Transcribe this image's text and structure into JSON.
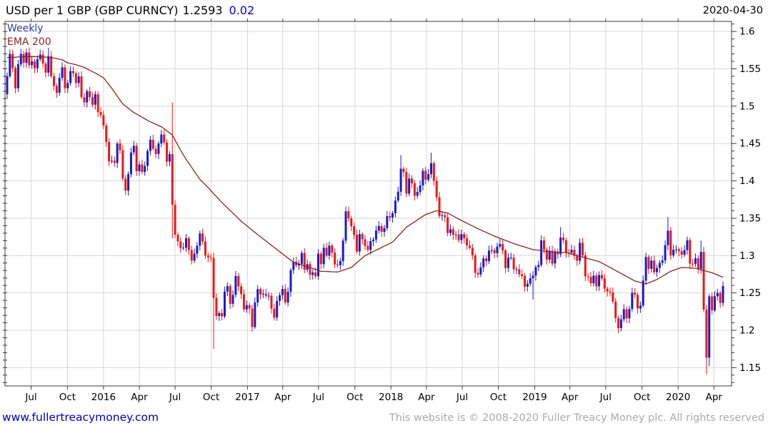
{
  "header": {
    "title": "USD per 1 GBP (GBP CURNCY)",
    "last_price": "1.2593",
    "change": "0.02",
    "date": "2020-04-30"
  },
  "chart_annotations": {
    "timeframe_label": "Weekly",
    "ema_label": "EMA 200"
  },
  "footer": {
    "link": "www.fullertreacymoney.com",
    "copyright": "This website is © 2008-2020 Fuller Treacy Money plc. All rights reserved"
  },
  "colors": {
    "up_candle": "#1a1acd",
    "down_candle": "#ee1616",
    "ema_line": "#8b2424",
    "weekly_label": "#3a3aa0",
    "ema_label": "#8b2424",
    "change_text": "#0000cd",
    "link_text": "#0000bb",
    "copyright_text": "#ababab",
    "grid": "#d8d8d8",
    "frame": "#3c3c3c",
    "label_text": "#000000"
  },
  "chart_data": {
    "type": "candlestick",
    "title": "USD per 1 GBP (GBP CURNCY)",
    "timeframe": "Weekly",
    "overlay": "EMA 200",
    "period_start": "2015-05-01",
    "period_end": "2020-04-30",
    "ylim": [
      1.1255,
      1.6135
    ],
    "y_ticks": [
      1.6,
      1.55,
      1.5,
      1.45,
      1.4,
      1.35,
      1.3,
      1.25,
      1.2,
      1.15
    ],
    "y_tick_labels": [
      "1.6",
      "1.55",
      "1.5",
      "1.45",
      "1.4",
      "1.35",
      "1.3",
      "1.25",
      "1.2",
      "1.15"
    ],
    "y_minor_step": 0.01,
    "x_tick_labels": [
      "Jul",
      "Oct",
      "2016",
      "Apr",
      "Jul",
      "Oct",
      "2017",
      "Apr",
      "Jul",
      "Oct",
      "2018",
      "Apr",
      "Jul",
      "Oct",
      "2019",
      "Apr",
      "Jul",
      "Oct",
      "2020",
      "Apr"
    ],
    "x_tick_weeks": [
      8.7,
      21.9,
      35.0,
      48.0,
      61.0,
      74.1,
      87.3,
      100.1,
      113.1,
      126.3,
      139.4,
      152.3,
      165.3,
      178.4,
      191.6,
      204.4,
      217.4,
      230.6,
      243.7,
      256.7
    ],
    "first_open": 1.516,
    "weekly_closes": [
      1.54,
      1.57,
      1.551,
      1.524,
      1.556,
      1.57,
      1.558,
      1.572,
      1.555,
      1.56,
      1.551,
      1.563,
      1.569,
      1.557,
      1.545,
      1.567,
      1.54,
      1.527,
      1.518,
      1.538,
      1.552,
      1.524,
      1.531,
      1.547,
      1.544,
      1.531,
      1.54,
      1.512,
      1.505,
      1.52,
      1.512,
      1.502,
      1.516,
      1.492,
      1.488,
      1.474,
      1.452,
      1.426,
      1.427,
      1.424,
      1.45,
      1.441,
      1.403,
      1.387,
      1.409,
      1.438,
      1.447,
      1.413,
      1.422,
      1.412,
      1.42,
      1.44,
      1.455,
      1.443,
      1.436,
      1.45,
      1.462,
      1.4515,
      1.4258,
      1.4358,
      1.368,
      1.328,
      1.319,
      1.31,
      1.3106,
      1.3232,
      1.3075,
      1.2932,
      1.3025,
      1.3132,
      1.3296,
      1.319,
      1.3,
      1.2977,
      1.297,
      1.2434,
      1.2191,
      1.223,
      1.2186,
      1.2517,
      1.259,
      1.2354,
      1.2474,
      1.2727,
      1.2588,
      1.2483,
      1.228,
      1.2336,
      1.2289,
      1.2044,
      1.2372,
      1.2551,
      1.248,
      1.2488,
      1.2462,
      1.2463,
      1.229,
      1.217,
      1.2392,
      1.247,
      1.2553,
      1.2372,
      1.2516,
      1.2806,
      1.2917,
      1.2869,
      1.2889,
      1.3035,
      1.281,
      1.2886,
      1.2741,
      1.2775,
      1.2723,
      1.3025,
      1.2885,
      1.3104,
      1.2999,
      1.3133,
      1.3039,
      1.2882,
      1.2871,
      1.2926,
      1.32,
      1.3593,
      1.3497,
      1.3392,
      1.3277,
      1.3054,
      1.3288,
      1.3218,
      1.3128,
      1.3077,
      1.3193,
      1.3215,
      1.3335,
      1.3395,
      1.3317,
      1.3368,
      1.3528,
      1.351,
      1.3566,
      1.3736,
      1.3855,
      1.4163,
      1.4118,
      1.383,
      1.4032,
      1.3967,
      1.3802,
      1.3852,
      1.3939,
      1.4135,
      1.4015,
      1.4091,
      1.4237,
      1.4001,
      1.3781,
      1.353,
      1.354,
      1.3513,
      1.3302,
      1.3353,
      1.3276,
      1.3282,
      1.3207,
      1.3288,
      1.3232,
      1.3135,
      1.3103,
      1.3003,
      1.2768,
      1.2748,
      1.2843,
      1.2962,
      1.2925,
      1.3068,
      1.3073,
      1.3032,
      1.3121,
      1.3154,
      1.3069,
      1.2833,
      1.2972,
      1.2973,
      1.2816,
      1.2818,
      1.2751,
      1.2726,
      1.2583,
      1.2623,
      1.2697,
      1.2733,
      1.2846,
      1.2873,
      1.3203,
      1.308,
      1.2945,
      1.3065,
      1.2894,
      1.3053,
      1.3017,
      1.3242,
      1.3206,
      1.3038,
      1.3037,
      1.3077,
      1.2996,
      1.2932,
      1.3171,
      1.3003,
      1.2723,
      1.2715,
      1.2629,
      1.2732,
      1.2589,
      1.274,
      1.2694,
      1.2557,
      1.2519,
      1.2507,
      1.2384,
      1.2162,
      1.2029,
      1.2147,
      1.2281,
      1.216,
      1.2285,
      1.2503,
      1.2477,
      1.2291,
      1.2332,
      1.2665,
      1.2982,
      1.2822,
      1.2933,
      1.2779,
      1.2834,
      1.2903,
      1.2935,
      1.3139,
      1.3333,
      1.3004,
      1.3079,
      1.3083,
      1.3059,
      1.3012,
      1.3073,
      1.3206,
      1.2891,
      1.2889,
      1.2964,
      1.2822,
      1.3048,
      1.2277,
      1.1634,
      1.2454,
      1.2267,
      1.2455,
      1.25,
      1.2367,
      1.2593
    ],
    "wick_overrides": {
      "1": {
        "high": 1.576
      },
      "7": {
        "high": 1.577
      },
      "15": {
        "high": 1.578
      },
      "60": {
        "high": 1.505,
        "low": 1.323
      },
      "75": {
        "low": 1.175
      },
      "89": {
        "low": 1.198
      },
      "123": {
        "high": 1.3657
      },
      "143": {
        "high": 1.4346
      },
      "154": {
        "high": 1.4377
      },
      "191": {
        "low": 1.2409
      },
      "201": {
        "high": 1.3381
      },
      "222": {
        "low": 1.1959
      },
      "240": {
        "high": 1.3514
      },
      "252": {
        "high": 1.32
      },
      "254": {
        "low": 1.1412
      },
      "255": {
        "low": 1.152
      }
    },
    "ema_anchor_points": [
      [
        0,
        1.565
      ],
      [
        5,
        1.566
      ],
      [
        9,
        1.5665
      ],
      [
        13,
        1.566
      ],
      [
        17,
        1.5645
      ],
      [
        20,
        1.562
      ],
      [
        22,
        1.558
      ],
      [
        25,
        1.5555
      ],
      [
        28,
        1.552
      ],
      [
        30,
        1.548
      ],
      [
        32,
        1.5445
      ],
      [
        35,
        1.538
      ],
      [
        38,
        1.524
      ],
      [
        42,
        1.503
      ],
      [
        46,
        1.4915
      ],
      [
        52,
        1.479
      ],
      [
        56,
        1.4725
      ],
      [
        60,
        1.4615
      ],
      [
        63,
        1.441
      ],
      [
        65,
        1.429
      ],
      [
        70,
        1.402
      ],
      [
        73,
        1.391
      ],
      [
        78,
        1.371
      ],
      [
        85,
        1.346
      ],
      [
        91,
        1.328
      ],
      [
        98,
        1.308
      ],
      [
        104,
        1.291
      ],
      [
        110,
        1.284
      ],
      [
        114,
        1.279
      ],
      [
        120,
        1.278
      ],
      [
        125,
        1.284
      ],
      [
        130,
        1.3
      ],
      [
        135,
        1.309
      ],
      [
        140,
        1.318
      ],
      [
        145,
        1.338
      ],
      [
        152,
        1.355
      ],
      [
        156,
        1.36
      ],
      [
        160,
        1.357
      ],
      [
        165,
        1.347
      ],
      [
        171,
        1.336
      ],
      [
        177,
        1.326
      ],
      [
        184,
        1.316
      ],
      [
        191,
        1.308
      ],
      [
        197,
        1.305
      ],
      [
        203,
        1.304
      ],
      [
        209,
        1.298
      ],
      [
        215,
        1.292
      ],
      [
        221,
        1.28
      ],
      [
        228,
        1.266
      ],
      [
        232,
        1.262
      ],
      [
        236,
        1.268
      ],
      [
        241,
        1.279
      ],
      [
        245,
        1.284
      ],
      [
        250,
        1.283
      ],
      [
        256,
        1.277
      ],
      [
        260,
        1.271
      ]
    ],
    "legend_position": "top-left",
    "grid": true
  }
}
